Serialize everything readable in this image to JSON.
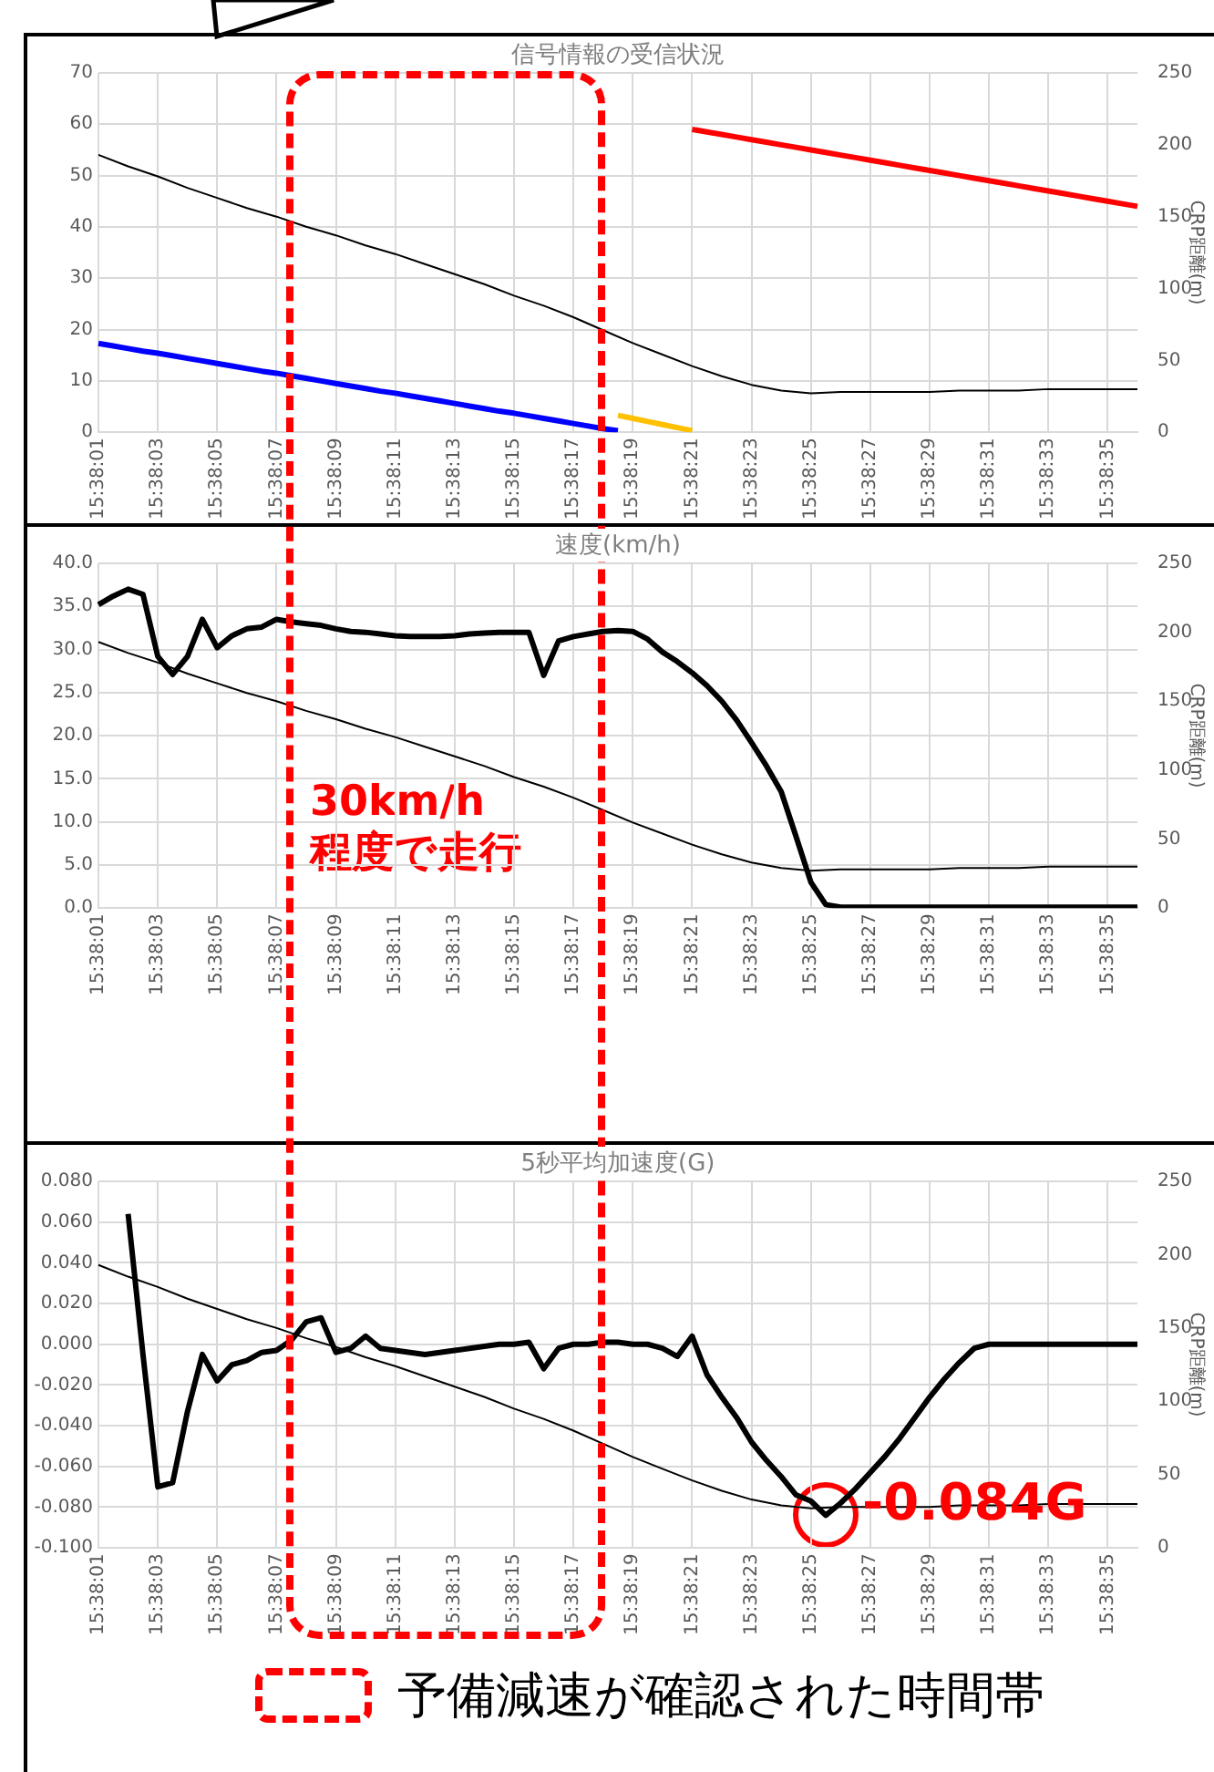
{
  "chart_data": [
    {
      "type": "line",
      "title": "信号情報の受信状況",
      "y2label": "CRP距離(m)",
      "categories": [
        "15:38:01",
        null,
        null,
        null,
        "15:38:03",
        null,
        null,
        null,
        "15:38:05",
        null,
        null,
        null,
        "15:38:07",
        null,
        null,
        null,
        "15:38:09",
        null,
        null,
        null,
        "15:38:11",
        null,
        null,
        null,
        "15:38:13",
        null,
        null,
        null,
        "15:38:15",
        null,
        null,
        null,
        "15:38:17",
        null,
        null,
        null,
        "15:38:19",
        null,
        null,
        null,
        "15:38:21",
        null,
        null,
        null,
        "15:38:23",
        null,
        null,
        null,
        "15:38:25",
        null,
        null,
        null,
        "15:38:27",
        null,
        null,
        null,
        "15:38:29",
        null,
        null,
        null,
        "15:38:31",
        null,
        null,
        null,
        "15:38:33",
        null,
        null,
        null,
        "15:38:35",
        null,
        null
      ],
      "series": [
        {
          "color": "#0000ff",
          "values": [
            17.3,
            16.8,
            16.3,
            15.8,
            15.4,
            14.9,
            14.4,
            13.9,
            13.4,
            12.9,
            12.4,
            11.9,
            11.5,
            11.0,
            10.5,
            10.0,
            9.5,
            9.0,
            8.5,
            8.0,
            7.6,
            7.1,
            6.6,
            6.1,
            5.6,
            5.1,
            4.6,
            4.1,
            3.7,
            3.2,
            2.7,
            2.2,
            1.7,
            1.2,
            0.7,
            0.3,
            null,
            null,
            null,
            null,
            null,
            null,
            null,
            null,
            null,
            null,
            null,
            null,
            null,
            null,
            null,
            null,
            null,
            null,
            null,
            null,
            null,
            null,
            null,
            null,
            null,
            null,
            null,
            null,
            null,
            null,
            null,
            null,
            null,
            null,
            null
          ]
        },
        {
          "color": "#ffc000",
          "values": [
            null,
            null,
            null,
            null,
            null,
            null,
            null,
            null,
            null,
            null,
            null,
            null,
            null,
            null,
            null,
            null,
            null,
            null,
            null,
            null,
            null,
            null,
            null,
            null,
            null,
            null,
            null,
            null,
            null,
            null,
            null,
            null,
            null,
            null,
            null,
            3.3,
            2.7,
            2.1,
            1.5,
            0.9,
            0.3,
            null,
            null,
            null,
            null,
            null,
            null,
            null,
            null,
            null,
            null,
            null,
            null,
            null,
            null,
            null,
            null,
            null,
            null,
            null,
            null,
            null,
            null,
            null,
            null,
            null,
            null,
            null,
            null,
            null,
            null
          ]
        },
        {
          "color": "#ff0000",
          "values": [
            null,
            null,
            null,
            null,
            null,
            null,
            null,
            null,
            null,
            null,
            null,
            null,
            null,
            null,
            null,
            null,
            null,
            null,
            null,
            null,
            null,
            null,
            null,
            null,
            null,
            null,
            null,
            null,
            null,
            null,
            null,
            null,
            null,
            null,
            null,
            null,
            null,
            null,
            null,
            null,
            59,
            58.5,
            58,
            57.5,
            57,
            56.5,
            56,
            55.5,
            55,
            54.5,
            54,
            53.5,
            53,
            52.5,
            52,
            51.5,
            51,
            50.5,
            50,
            49.5,
            49,
            48.5,
            48,
            47.5,
            47,
            46.5,
            46,
            45.5,
            45,
            44.5,
            44
          ]
        },
        {
          "color": "#000000",
          "axis": "y2",
          "values": [
            193,
            null,
            185,
            null,
            178,
            null,
            170,
            null,
            163,
            null,
            156,
            null,
            150,
            null,
            143,
            null,
            137,
            null,
            130,
            null,
            124,
            null,
            117,
            null,
            110,
            null,
            103,
            null,
            95,
            null,
            88,
            null,
            80,
            null,
            71,
            null,
            62,
            null,
            54,
            null,
            46,
            null,
            39,
            null,
            33,
            null,
            29,
            null,
            27,
            null,
            28,
            null,
            28,
            null,
            28,
            null,
            28,
            null,
            29,
            null,
            29,
            null,
            29,
            null,
            30,
            null,
            30,
            null,
            30,
            null,
            30
          ]
        }
      ],
      "ylim": [
        0,
        70
      ],
      "yticks": [
        0,
        10,
        20,
        30,
        40,
        50,
        60,
        70
      ],
      "y2lim": [
        0,
        250
      ],
      "y2ticks": [
        0,
        50,
        100,
        150,
        200,
        250
      ],
      "grid": true,
      "legend": false
    },
    {
      "type": "line",
      "title": "速度(km/h)",
      "y2label": "CRP距離(m)",
      "categories": [
        "15:38:01",
        null,
        null,
        null,
        "15:38:03",
        null,
        null,
        null,
        "15:38:05",
        null,
        null,
        null,
        "15:38:07",
        null,
        null,
        null,
        "15:38:09",
        null,
        null,
        null,
        "15:38:11",
        null,
        null,
        null,
        "15:38:13",
        null,
        null,
        null,
        "15:38:15",
        null,
        null,
        null,
        "15:38:17",
        null,
        null,
        null,
        "15:38:19",
        null,
        null,
        null,
        "15:38:21",
        null,
        null,
        null,
        "15:38:23",
        null,
        null,
        null,
        "15:38:25",
        null,
        null,
        null,
        "15:38:27",
        null,
        null,
        null,
        "15:38:29",
        null,
        null,
        null,
        "15:38:31",
        null,
        null,
        null,
        "15:38:33",
        null,
        null,
        null,
        "15:38:35",
        null,
        null
      ],
      "series": [
        {
          "color": "#000000",
          "values": [
            35.2,
            36.2,
            37,
            36.4,
            29.2,
            27.1,
            29.2,
            33.5,
            30.2,
            31.6,
            32.4,
            32.6,
            33.5,
            33.2,
            33,
            32.8,
            32.4,
            32.1,
            32,
            31.8,
            31.6,
            31.5,
            31.5,
            31.5,
            31.6,
            31.8,
            31.9,
            32,
            32,
            32,
            27,
            31,
            31.5,
            31.8,
            32.1,
            32.2,
            32.1,
            31.2,
            29.7,
            28.6,
            27.3,
            25.8,
            24,
            21.8,
            19.2,
            16.5,
            13.5,
            8.3,
            3,
            0.4,
            0.1,
            0.1,
            0.1,
            0.1,
            0.1,
            0.1,
            0.1,
            0.1,
            0.1,
            0.1,
            0.1,
            0.1,
            0.1,
            0.1,
            0.1,
            0.1,
            0.1,
            0.1,
            0.1,
            0.1,
            0.1
          ]
        },
        {
          "color": "#000000",
          "axis": "y2",
          "values": [
            193,
            null,
            185,
            null,
            178,
            null,
            170,
            null,
            163,
            null,
            156,
            null,
            150,
            null,
            143,
            null,
            137,
            null,
            130,
            null,
            124,
            null,
            117,
            null,
            110,
            null,
            103,
            null,
            95,
            null,
            88,
            null,
            80,
            null,
            71,
            null,
            62,
            null,
            54,
            null,
            46,
            null,
            39,
            null,
            33,
            null,
            29,
            null,
            27,
            null,
            28,
            null,
            28,
            null,
            28,
            null,
            28,
            null,
            29,
            null,
            29,
            null,
            29,
            null,
            30,
            null,
            30,
            null,
            30,
            null,
            30
          ]
        }
      ],
      "ylim": [
        0,
        40
      ],
      "yticks": [
        {
          "value": 0,
          "label": "0.0"
        },
        {
          "value": 5,
          "label": "5.0"
        },
        {
          "value": 10,
          "label": "10.0"
        },
        {
          "value": 15,
          "label": "15.0"
        },
        {
          "value": 20,
          "label": "20.0"
        },
        {
          "value": 25,
          "label": "25.0"
        },
        {
          "value": 30,
          "label": "30.0"
        },
        {
          "value": 35,
          "label": "35.0"
        },
        {
          "value": 40,
          "label": "40.0"
        }
      ],
      "y2lim": [
        0,
        250
      ],
      "y2ticks": [
        0,
        50,
        100,
        150,
        200,
        250
      ],
      "grid": true,
      "legend": false,
      "annotations": [
        "30km/h\n程度で走行"
      ]
    },
    {
      "type": "line",
      "title": "5秒平均加速度(G)",
      "y2label": "CRP距離(m)",
      "categories": [
        "15:38:01",
        null,
        null,
        null,
        "15:38:03",
        null,
        null,
        null,
        "15:38:05",
        null,
        null,
        null,
        "15:38:07",
        null,
        null,
        null,
        "15:38:09",
        null,
        null,
        null,
        "15:38:11",
        null,
        null,
        null,
        "15:38:13",
        null,
        null,
        null,
        "15:38:15",
        null,
        null,
        null,
        "15:38:17",
        null,
        null,
        null,
        "15:38:19",
        null,
        null,
        null,
        "15:38:21",
        null,
        null,
        null,
        "15:38:23",
        null,
        null,
        null,
        "15:38:25",
        null,
        null,
        null,
        "15:38:27",
        null,
        null,
        null,
        "15:38:29",
        null,
        null,
        null,
        "15:38:31",
        null,
        null,
        null,
        "15:38:33",
        null,
        null,
        null,
        "15:38:35",
        null,
        null
      ],
      "series": [
        {
          "color": "#000000",
          "values": [
            null,
            null,
            0.064,
            -0.005,
            -0.07,
            -0.068,
            -0.033,
            -0.005,
            -0.018,
            -0.01,
            -0.008,
            -0.004,
            -0.003,
            0.002,
            0.011,
            0.013,
            -0.004,
            -0.002,
            0.004,
            -0.002,
            -0.003,
            -0.004,
            -0.005,
            -0.004,
            -0.003,
            -0.002,
            -0.001,
            0,
            0,
            0.001,
            -0.012,
            -0.002,
            0,
            0,
            0.001,
            0.001,
            0,
            0,
            -0.002,
            -0.006,
            0.004,
            -0.015,
            -0.026,
            -0.036,
            -0.048,
            -0.057,
            -0.065,
            -0.074,
            -0.077,
            -0.084,
            -0.078,
            -0.071,
            -0.063,
            -0.055,
            -0.046,
            -0.036,
            -0.026,
            -0.017,
            -0.009,
            -0.002,
            0,
            0,
            0,
            0,
            0,
            0,
            0,
            0,
            0,
            0,
            0
          ]
        },
        {
          "color": "#000000",
          "axis": "y2",
          "values": [
            193,
            null,
            185,
            null,
            178,
            null,
            170,
            null,
            163,
            null,
            156,
            null,
            150,
            null,
            143,
            null,
            137,
            null,
            130,
            null,
            124,
            null,
            117,
            null,
            110,
            null,
            103,
            null,
            95,
            null,
            88,
            null,
            80,
            null,
            71,
            null,
            62,
            null,
            54,
            null,
            46,
            null,
            39,
            null,
            33,
            null,
            29,
            null,
            27,
            null,
            28,
            null,
            28,
            null,
            28,
            null,
            28,
            null,
            29,
            null,
            29,
            null,
            29,
            null,
            30,
            null,
            30,
            null,
            30,
            null,
            30
          ]
        }
      ],
      "ylim": [
        -0.1,
        0.08
      ],
      "yticks": [
        {
          "value": -0.1,
          "label": "-0.100"
        },
        {
          "value": -0.08,
          "label": "-0.080"
        },
        {
          "value": -0.06,
          "label": "-0.060"
        },
        {
          "value": -0.04,
          "label": "-0.040"
        },
        {
          "value": -0.02,
          "label": "-0.020"
        },
        {
          "value": 0,
          "label": "0.000"
        },
        {
          "value": 0.02,
          "label": "0.020"
        },
        {
          "value": 0.04,
          "label": "0.040"
        },
        {
          "value": 0.06,
          "label": "0.060"
        },
        {
          "value": 0.08,
          "label": "0.080"
        }
      ],
      "y2lim": [
        0,
        250
      ],
      "y2ticks": [
        0,
        50,
        100,
        150,
        200,
        250
      ],
      "grid": true,
      "legend": false,
      "annotations": [
        {
          "text": "-0.084G",
          "y": -0.084
        },
        "予備減速が確認された時間帯"
      ]
    }
  ]
}
